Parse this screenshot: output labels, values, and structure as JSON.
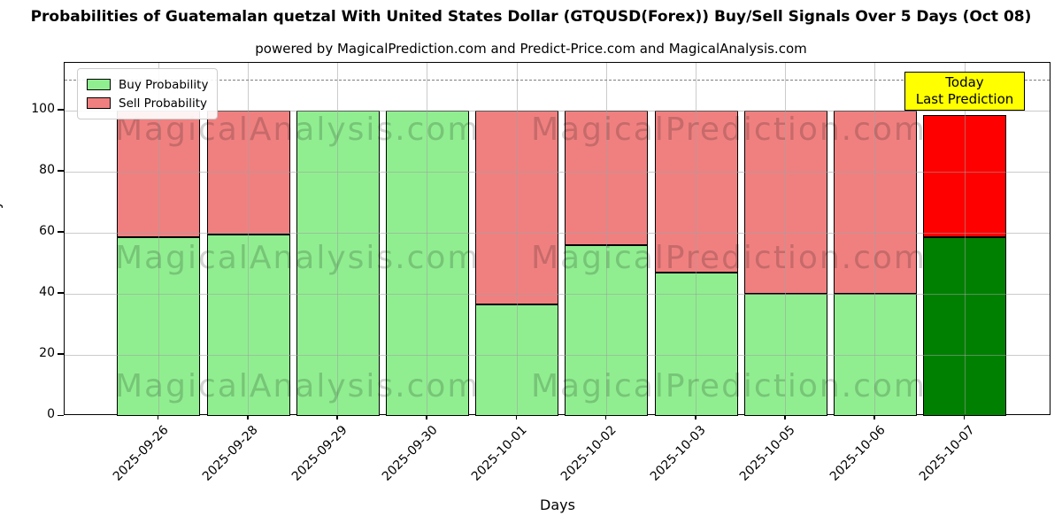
{
  "title": "Probabilities of Guatemalan quetzal With United States Dollar (GTQUSD(Forex)) Buy/Sell Signals Over 5 Days (Oct 08)",
  "subtitle": "powered by MagicalPrediction.com and Predict-Price.com and MagicalAnalysis.com",
  "legend": [
    {
      "label": "Buy Probability",
      "color": "#90ee90"
    },
    {
      "label": "Sell Probability",
      "color": "#f08080"
    }
  ],
  "annotation": {
    "line1": "Today",
    "line2": "Last Prediction",
    "bg": "#ffff00"
  },
  "watermarks": {
    "left_text": "MagicalAnalysis.com",
    "right_text": "MagicalPrediction.com"
  },
  "chart_data": {
    "type": "bar",
    "stacked": true,
    "title": "Probabilities of Guatemalan quetzal With United States Dollar (GTQUSD(Forex)) Buy/Sell Signals Over 5 Days (Oct 08)",
    "xlabel": "Days",
    "ylabel": "Probability",
    "categories": [
      "2025-09-26",
      "2025-09-28",
      "2025-09-29",
      "2025-09-30",
      "2025-10-01",
      "2025-10-02",
      "2025-10-03",
      "2025-10-05",
      "2025-10-06",
      "2025-10-07"
    ],
    "series": [
      {
        "name": "Buy Probability",
        "values": [
          58.5,
          59.5,
          100,
          100,
          36.5,
          56,
          47,
          40,
          40,
          58.5
        ]
      },
      {
        "name": "Sell Probability",
        "values": [
          41.5,
          40.5,
          0,
          0,
          63.5,
          44,
          53,
          60,
          60,
          40
        ]
      }
    ],
    "yticks": [
      0,
      20,
      40,
      60,
      80,
      100
    ],
    "ylim": [
      0,
      115.6
    ],
    "grid": true,
    "legend_position": "upper left",
    "dashed_line_y": 110,
    "today_index": 9,
    "colors": {
      "buy": "#90ee90",
      "sell": "#f08080",
      "today_buy": "#008000",
      "today_sell": "#ff0000"
    }
  }
}
